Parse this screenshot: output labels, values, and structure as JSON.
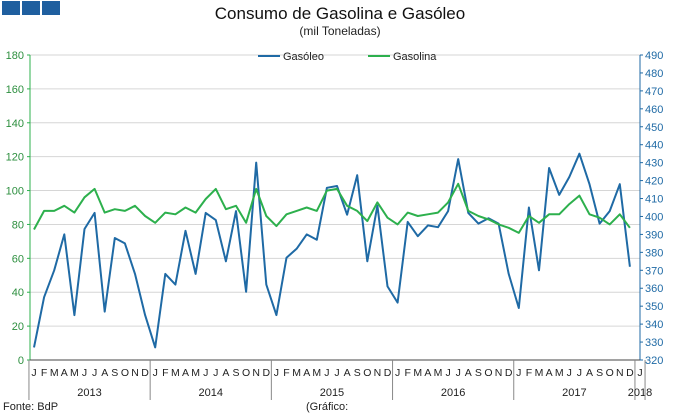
{
  "chart_data": {
    "type": "line",
    "title": "Consumo de Gasolina e Gasóleo",
    "subtitle": "(mil Toneladas)",
    "month_labels": [
      "J",
      "F",
      "M",
      "A",
      "M",
      "J",
      "J",
      "A",
      "S",
      "O",
      "N",
      "D",
      "J",
      "F",
      "M",
      "A",
      "M",
      "J",
      "J",
      "A",
      "S",
      "O",
      "N",
      "D",
      "J",
      "F",
      "M",
      "A",
      "M",
      "J",
      "J",
      "A",
      "S",
      "O",
      "N",
      "D",
      "J",
      "F",
      "M",
      "A",
      "M",
      "J",
      "J",
      "A",
      "S",
      "O",
      "N",
      "D",
      "J",
      "F",
      "M",
      "A",
      "M",
      "J",
      "J",
      "A",
      "S",
      "O",
      "N",
      "D",
      "J"
    ],
    "year_labels": [
      {
        "label": "2013",
        "start": 0,
        "end": 11
      },
      {
        "label": "2014",
        "start": 12,
        "end": 23
      },
      {
        "label": "2015",
        "start": 24,
        "end": 35
      },
      {
        "label": "2016",
        "start": 36,
        "end": 47
      },
      {
        "label": "2017",
        "start": 48,
        "end": 59
      },
      {
        "label": "2018",
        "start": 60,
        "end": 60
      }
    ],
    "left_axis": {
      "min": 0,
      "max": 180,
      "step": 20,
      "ticks": [
        "0",
        "20",
        "40",
        "60",
        "80",
        "100",
        "120",
        "140",
        "160",
        "180"
      ]
    },
    "right_axis": {
      "min": 320,
      "max": 490,
      "step": 10,
      "ticks": [
        "320",
        "330",
        "340",
        "350",
        "360",
        "370",
        "380",
        "390",
        "400",
        "410",
        "420",
        "430",
        "440",
        "450",
        "460",
        "470",
        "480",
        "490"
      ]
    },
    "series": [
      {
        "name": "Gasóleo",
        "axis": "right",
        "color": "#1f6aa5",
        "values": [
          327,
          355,
          370,
          390,
          345,
          393,
          402,
          347,
          388,
          385,
          368,
          345,
          327,
          368,
          362,
          392,
          368,
          402,
          398,
          375,
          403,
          358,
          430,
          362,
          345,
          377,
          382,
          390,
          387,
          416,
          417,
          401,
          423,
          375,
          406,
          361,
          352,
          397,
          389,
          395,
          394,
          403,
          432,
          402,
          396,
          399,
          396,
          368,
          349,
          405,
          370,
          427,
          412,
          422,
          435,
          418,
          396,
          403,
          418,
          372
        ]
      },
      {
        "name": "Gasolina",
        "axis": "left",
        "color": "#2db04d",
        "values": [
          77,
          88,
          88,
          91,
          87,
          96,
          101,
          87,
          89,
          88,
          91,
          85,
          81,
          87,
          86,
          90,
          87,
          95,
          101,
          89,
          91,
          81,
          101,
          85,
          79,
          86,
          88,
          90,
          88,
          100,
          101,
          91,
          88,
          82,
          93,
          84,
          80,
          87,
          85,
          86,
          87,
          93,
          104,
          88,
          85,
          83,
          80,
          78,
          75,
          85,
          81,
          86,
          86,
          92,
          97,
          86,
          84,
          80,
          86,
          78
        ]
      }
    ],
    "legend": {
      "position": "top-center"
    },
    "grid": {
      "horizontal": true
    },
    "footer_left": "Fonte: BdP",
    "footer_center": "(Gráfico:"
  }
}
